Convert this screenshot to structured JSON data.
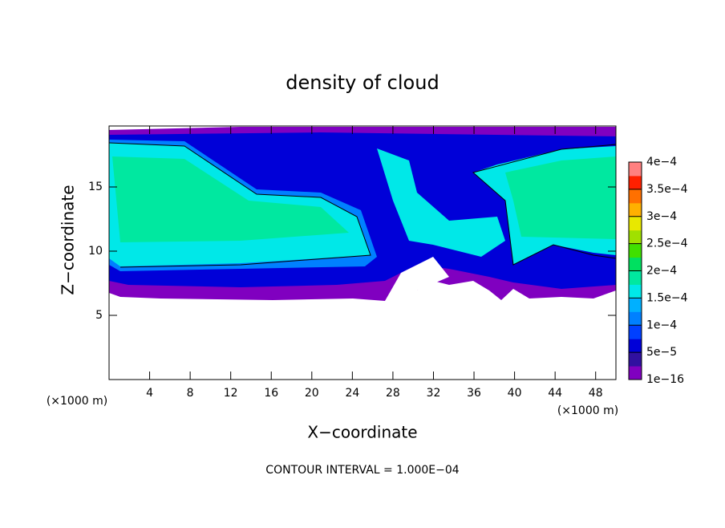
{
  "chart_data": {
    "type": "contour",
    "title": "density of cloud",
    "xlabel": "X−coordinate",
    "ylabel": "Z−coordinate",
    "xunit": "(×1000 m)",
    "yunit": "(×1000 m)",
    "xlim": [
      0,
      50
    ],
    "ylim": [
      0,
      19.75
    ],
    "xticks": [
      4,
      8,
      12,
      16,
      20,
      24,
      28,
      32,
      36,
      40,
      44,
      48
    ],
    "yticks": [
      5,
      10,
      15
    ],
    "note": "CONTOUR INTERVAL = 1.000E−04",
    "colorbar": {
      "lim": [
        1e-16,
        0.0004
      ],
      "ticks": [
        {
          "value": 1e-16,
          "label": "1e−16"
        },
        {
          "value": 5e-05,
          "label": "5e−5"
        },
        {
          "value": 0.0001,
          "label": "1e−4"
        },
        {
          "value": 0.00015,
          "label": "1.5e−4"
        },
        {
          "value": 0.0002,
          "label": "2e−4"
        },
        {
          "value": 0.00025,
          "label": "2.5e−4"
        },
        {
          "value": 0.0003,
          "label": "3e−4"
        },
        {
          "value": 0.00035,
          "label": "3.5e−4"
        },
        {
          "value": 0.0004,
          "label": "4e−4"
        }
      ],
      "colors": [
        "#8000c0",
        "#3010a0",
        "#0000d8",
        "#0040ff",
        "#0080ff",
        "#00b0ff",
        "#00e8e8",
        "#00e8a0",
        "#00e060",
        "#40e000",
        "#a0e000",
        "#e8e800",
        "#ffb000",
        "#ff7000",
        "#ff2000",
        "#ff8080"
      ]
    }
  }
}
